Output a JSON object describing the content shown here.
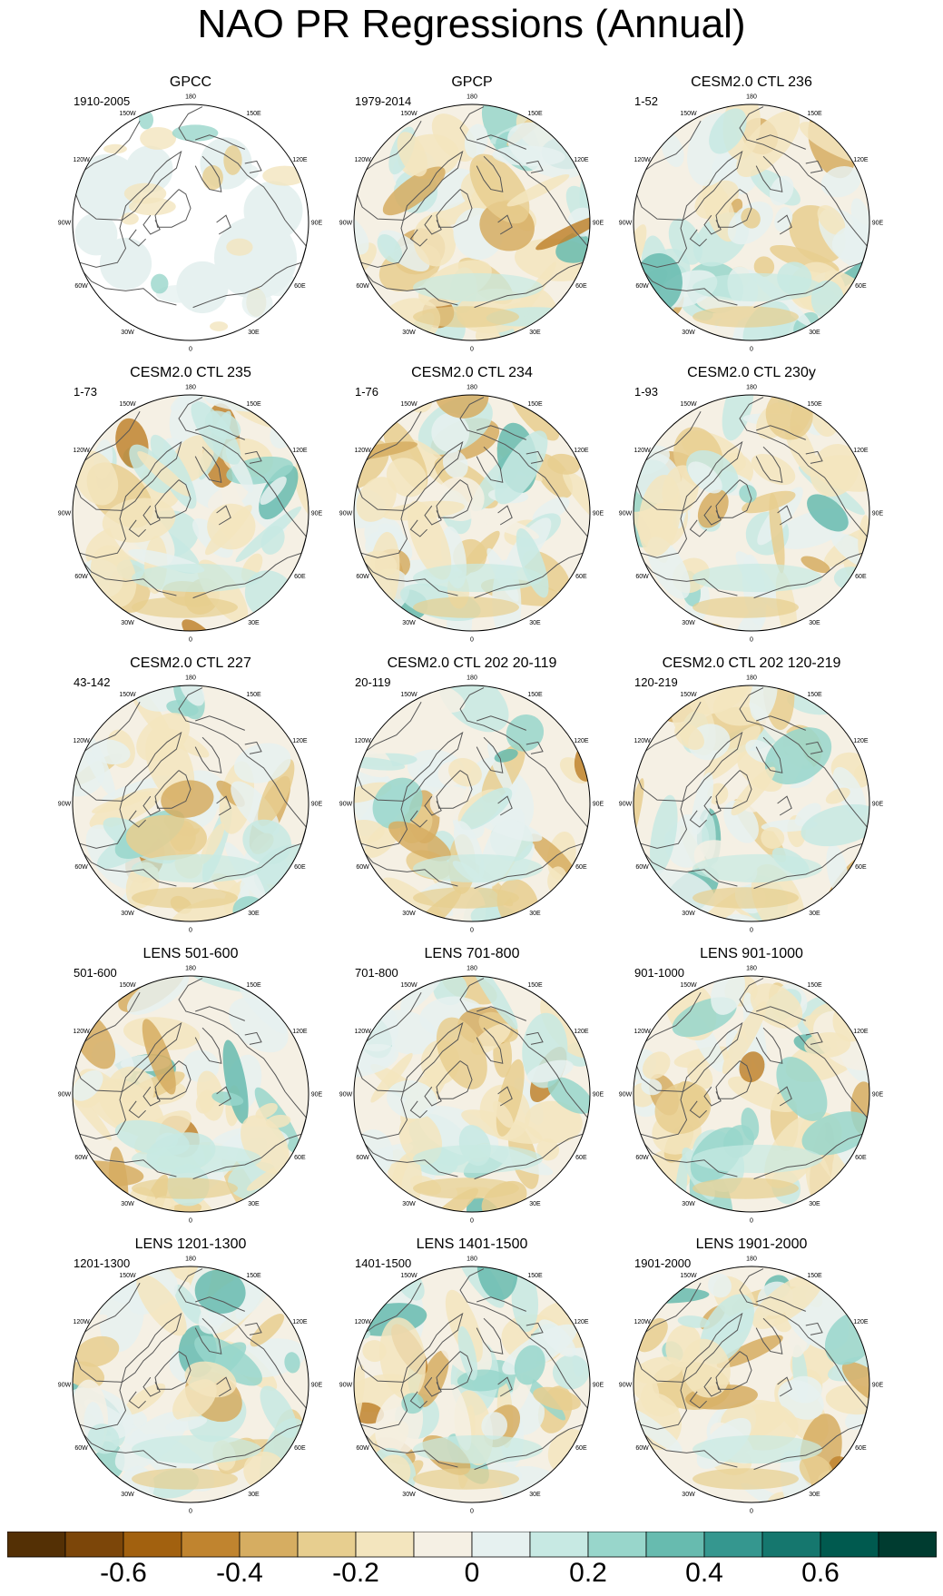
{
  "title": "NAO PR Regressions (Annual)",
  "chart_data": {
    "type": "heatmap",
    "projection": "north polar stereographic",
    "longitude_labels": [
      "180",
      "150E",
      "120E",
      "90E",
      "60E",
      "30E",
      "0",
      "30W",
      "60W",
      "90W",
      "120W",
      "150W"
    ],
    "panels": [
      {
        "name": "GPCC",
        "period": "1910-2005",
        "land_only": true
      },
      {
        "name": "GPCP",
        "period": "1979-2014"
      },
      {
        "name": "CESM2.0 CTL 236",
        "period": "1-52"
      },
      {
        "name": "CESM2.0 CTL 235",
        "period": "1-73"
      },
      {
        "name": "CESM2.0 CTL 234",
        "period": "1-76"
      },
      {
        "name": "CESM2.0 CTL 230y",
        "period": "1-93"
      },
      {
        "name": "CESM2.0 CTL 227",
        "period": "43-142"
      },
      {
        "name": "CESM2.0 CTL 202 20-119",
        "period": "20-119"
      },
      {
        "name": "CESM2.0 CTL 202 120-219",
        "period": "120-219"
      },
      {
        "name": "LENS 501-600",
        "period": "501-600"
      },
      {
        "name": "LENS 701-800",
        "period": "701-800"
      },
      {
        "name": "LENS 901-1000",
        "period": "901-1000"
      },
      {
        "name": "LENS 1201-1300",
        "period": "1201-1300"
      },
      {
        "name": "LENS 1401-1500",
        "period": "1401-1500"
      },
      {
        "name": "LENS 1901-2000",
        "period": "1901-2000"
      }
    ],
    "colorbar": {
      "min": -0.8,
      "max": 0.8,
      "step": 0.1,
      "tick_labels": [
        "-0.6",
        "-0.4",
        "-0.2",
        "0",
        "0.2",
        "0.4",
        "0.6"
      ],
      "tick_values": [
        -0.6,
        -0.4,
        -0.2,
        0,
        0.2,
        0.4,
        0.6
      ],
      "colors": [
        "#543005",
        "#7c4609",
        "#a2610f",
        "#c0842f",
        "#d6ad61",
        "#e7ce8f",
        "#f3e5be",
        "#f5f0e4",
        "#e6f1f0",
        "#c7e9e3",
        "#98d6cb",
        "#67bbaf",
        "#35978f",
        "#15776e",
        "#005a4f",
        "#003c30"
      ]
    }
  }
}
